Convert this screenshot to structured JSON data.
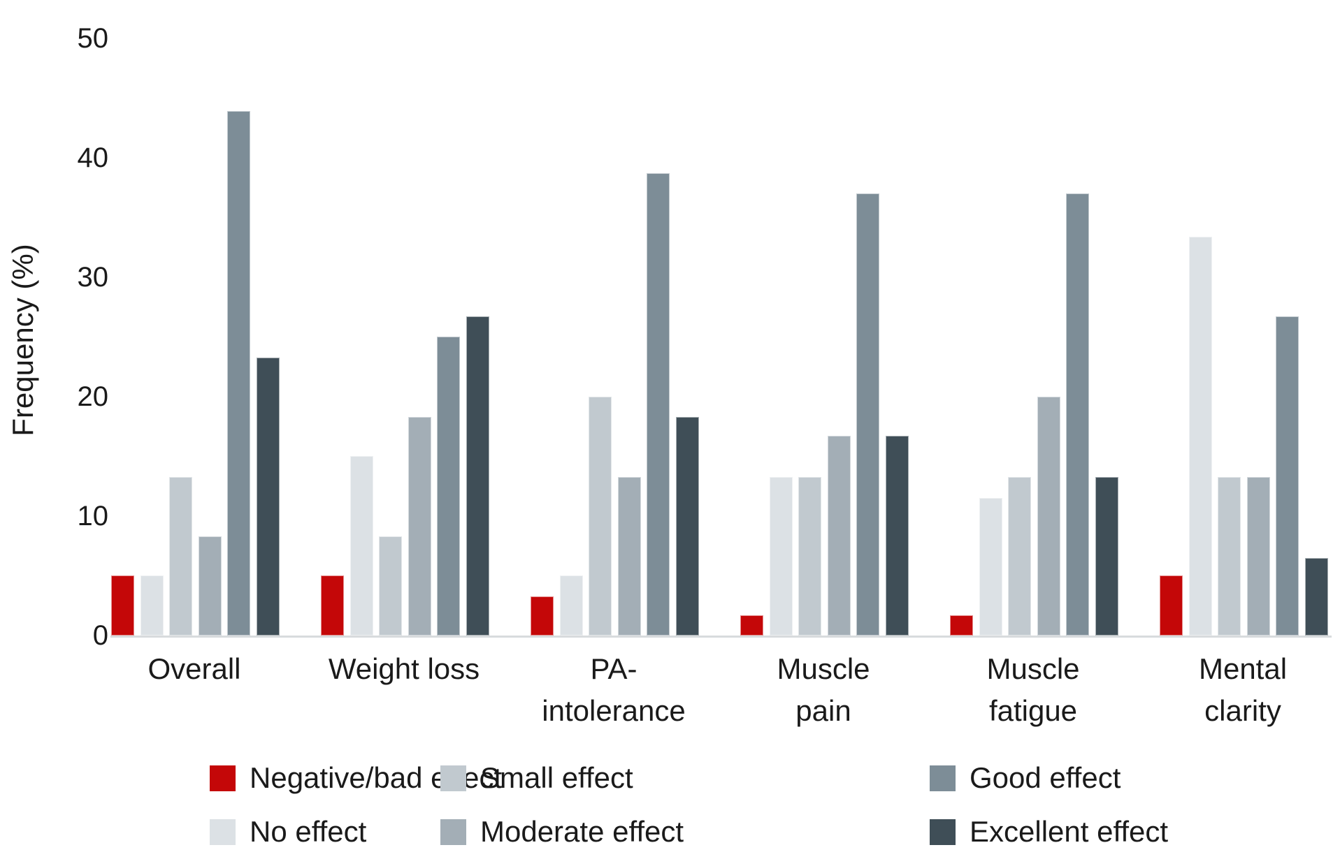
{
  "chart_data": {
    "type": "bar",
    "title": "",
    "ylabel": "Frequency (%)",
    "xlabel": "",
    "ylim": [
      0,
      50
    ],
    "yticks": [
      0,
      10,
      20,
      30,
      40,
      50
    ],
    "grid": false,
    "legend_position": "bottom",
    "categories": [
      "Overall",
      "Weight loss",
      "PA-intolerance",
      "Muscle pain",
      "Muscle fatigue",
      "Mental clarity"
    ],
    "category_label_lines": [
      [
        "Overall"
      ],
      [
        "Weight loss"
      ],
      [
        "PA-",
        "intolerance"
      ],
      [
        "Muscle",
        "pain"
      ],
      [
        "Muscle",
        "fatigue"
      ],
      [
        "Mental",
        "clarity"
      ]
    ],
    "series": [
      {
        "name": "Negative/bad effect",
        "color": "#c40708",
        "values": [
          5,
          5,
          3.3,
          1.7,
          1.7,
          5
        ]
      },
      {
        "name": "No effect",
        "color": "#dce1e5",
        "values": [
          5,
          15,
          5,
          13.3,
          11.5,
          33.4
        ]
      },
      {
        "name": "Small effect",
        "color": "#c1c9cf",
        "values": [
          13.3,
          8.3,
          20,
          13.3,
          13.3,
          13.3
        ]
      },
      {
        "name": "Moderate effect",
        "color": "#a3aeb6",
        "values": [
          8.3,
          18.3,
          13.3,
          16.7,
          20,
          13.3
        ]
      },
      {
        "name": "Good effect",
        "color": "#7d8d97",
        "values": [
          43.9,
          25,
          38.7,
          37,
          37,
          26.7
        ]
      },
      {
        "name": "Excellent effect",
        "color": "#3f4e57",
        "values": [
          23.3,
          26.7,
          18.3,
          16.7,
          13.3,
          6.5
        ]
      }
    ],
    "legend_order_column_major": [
      "Negative/bad effect",
      "No effect",
      "Small effect",
      "Moderate effect",
      "Good effect",
      "Excellent effect"
    ],
    "colors": {
      "negative": "#c40708",
      "no_effect": "#dce1e5",
      "small": "#c1c9cf",
      "moderate": "#a3aeb6",
      "good": "#7d8d97",
      "excellent": "#3f4e57",
      "axis_line": "#d8dbdd",
      "text": "#1a1a1a"
    }
  }
}
